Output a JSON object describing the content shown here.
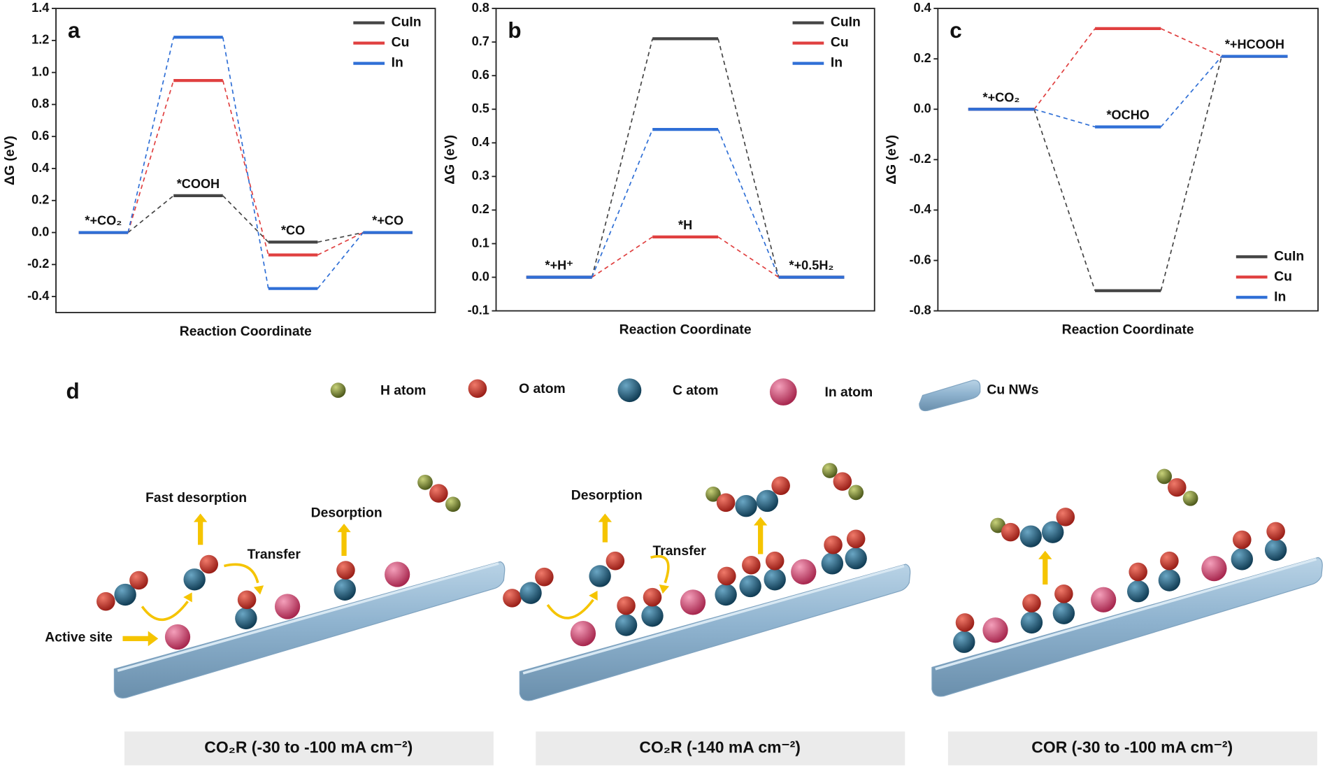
{
  "chart_data": [
    {
      "type": "line",
      "label": "a",
      "xlabel": "Reaction Coordinate",
      "ylabel": "ΔG (eV)",
      "categories": [
        "*+CO₂",
        "*COOH",
        "*CO",
        "*+CO"
      ],
      "series": [
        {
          "name": "CuIn",
          "color": "#454545",
          "values": [
            0,
            0.23,
            -0.06,
            0
          ]
        },
        {
          "name": "Cu",
          "color": "#e04040",
          "values": [
            0,
            0.95,
            -0.14,
            0
          ]
        },
        {
          "name": "In",
          "color": "#2f6fd6",
          "values": [
            0,
            1.22,
            -0.35,
            0
          ]
        }
      ],
      "ylim": [
        -0.5,
        1.4
      ],
      "yticks": [
        -0.4,
        -0.2,
        {
          "value": 0,
          "label": "0.0"
        },
        0.2,
        0.4,
        0.6,
        0.8,
        {
          "value": 1,
          "label": "1.0"
        },
        1.2,
        1.4
      ],
      "legend": "upper right"
    },
    {
      "type": "line",
      "label": "b",
      "xlabel": "Reaction Coordinate",
      "ylabel": "ΔG (eV)",
      "categories": [
        "*+H⁺",
        "*H",
        "*+0.5H₂"
      ],
      "series": [
        {
          "name": "CuIn",
          "color": "#454545",
          "values": [
            0,
            0.71,
            0
          ]
        },
        {
          "name": "Cu",
          "color": "#e04040",
          "values": [
            0,
            0.12,
            0
          ]
        },
        {
          "name": "In",
          "color": "#2f6fd6",
          "values": [
            0,
            0.44,
            0
          ]
        }
      ],
      "ylim": [
        -0.1,
        0.8
      ],
      "yticks": [
        -0.1,
        {
          "value": 0,
          "label": "0.0"
        },
        0.1,
        0.2,
        0.3,
        0.4,
        0.5,
        0.6,
        0.7,
        0.8
      ],
      "legend": "upper right"
    },
    {
      "type": "line",
      "label": "c",
      "xlabel": "Reaction Coordinate",
      "ylabel": "ΔG (eV)",
      "categories": [
        "*+CO₂",
        "*OCHO",
        "*+HCOOH"
      ],
      "series": [
        {
          "name": "CuIn",
          "color": "#454545",
          "values": [
            0,
            -0.72,
            0.21
          ]
        },
        {
          "name": "Cu",
          "color": "#e04040",
          "values": [
            0,
            0.32,
            0.21
          ]
        },
        {
          "name": "In",
          "color": "#2f6fd6",
          "values": [
            0,
            -0.07,
            0.21
          ]
        }
      ],
      "ylim": [
        -0.8,
        0.4
      ],
      "yticks": [
        -0.8,
        -0.6,
        -0.4,
        -0.2,
        {
          "value": 0,
          "label": "0.0"
        },
        0.2,
        0.4
      ],
      "legend": "lower right"
    }
  ],
  "schematic": {
    "label": "d",
    "legend": [
      "H atom",
      "O atom",
      "C atom",
      "In atom",
      "Cu NWs"
    ],
    "annotations": [
      "Fast desorption",
      "Desorption",
      "Transfer",
      "Active site",
      "Desorption",
      "Transfer"
    ],
    "conditions": [
      "CO₂R (-30 to -100 mA cm⁻²)",
      "CO₂R (-140 mA cm⁻²)",
      "COR (-30 to -100 mA cm⁻²)"
    ]
  }
}
